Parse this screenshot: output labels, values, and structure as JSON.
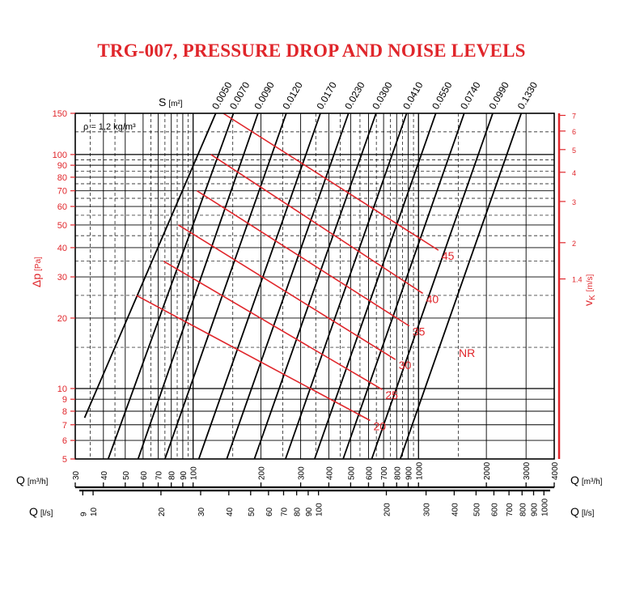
{
  "title": "TRG-007, PRESSURE DROP AND NOISE LEVELS",
  "colors": {
    "accent": "#e0262b",
    "lines": "#000000",
    "grid": "#000000"
  },
  "chart_data": {
    "type": "line",
    "title": "TRG-007, PRESSURE DROP AND NOISE LEVELS",
    "x_scale": "log",
    "y_scale": "log",
    "xlim": [
      30,
      4000
    ],
    "ylim": [
      5,
      150
    ],
    "grid": true,
    "annotation": "ρ = 1,2 kg/m³",
    "y_axis": {
      "label_main": "Δp",
      "label_unit": "[Pa]",
      "ticks": [
        5,
        6,
        7,
        8,
        9,
        10,
        20,
        30,
        40,
        50,
        60,
        70,
        80,
        90,
        100,
        150
      ]
    },
    "right_axis": {
      "label_main": "v",
      "label_sub": "K",
      "label_unit": "[m/s]",
      "ticks": [
        "1.4",
        "2",
        "3",
        "4",
        "5",
        "6",
        "7"
      ]
    },
    "x_axis_m3h": {
      "label_main": "Q",
      "label_unit": "[m³/h]",
      "ticks": [
        "30",
        "40",
        "50",
        "60",
        "70",
        "80",
        "90",
        "100",
        "200",
        "300",
        "400",
        "500",
        "600",
        "700",
        "800",
        "900",
        "1000",
        "2000",
        "3000",
        "4000"
      ]
    },
    "x_axis_ls": {
      "label_main": "Q",
      "label_unit": "[l/s]",
      "ticks": [
        "9",
        "10",
        "20",
        "30",
        "40",
        "50",
        "60",
        "70",
        "80",
        "90",
        "100",
        "200",
        "300",
        "400",
        "500",
        "600",
        "700",
        "800",
        "900",
        "1000"
      ]
    },
    "s_axis": {
      "label_main": "S",
      "label_unit": "[m²]"
    },
    "series": [
      {
        "name": "0.0050",
        "x": [
          33,
          126
        ],
        "y": [
          7.5,
          150
        ]
      },
      {
        "name": "0.0070",
        "x": [
          42,
          151
        ],
        "y": [
          5,
          150
        ]
      },
      {
        "name": "0.0090",
        "x": [
          57,
          194
        ],
        "y": [
          5,
          150
        ]
      },
      {
        "name": "0.0120",
        "x": [
          75,
          259
        ],
        "y": [
          5,
          150
        ]
      },
      {
        "name": "0.0170",
        "x": [
          106,
          367
        ],
        "y": [
          5,
          150
        ]
      },
      {
        "name": "0.0230",
        "x": [
          141,
          489
        ],
        "y": [
          5,
          150
        ]
      },
      {
        "name": "0.0300",
        "x": [
          187,
          648
        ],
        "y": [
          5,
          150
        ]
      },
      {
        "name": "0.0410",
        "x": [
          257,
          886
        ],
        "y": [
          5,
          150
        ]
      },
      {
        "name": "0.0550",
        "x": [
          346,
          1193
        ],
        "y": [
          5,
          150
        ]
      },
      {
        "name": "0.0740",
        "x": [
          463,
          1594
        ],
        "y": [
          5,
          150
        ]
      },
      {
        "name": "0.0990",
        "x": [
          620,
          2134
        ],
        "y": [
          5,
          150
        ]
      },
      {
        "name": "0.1330",
        "x": [
          830,
          2856
        ],
        "y": [
          5,
          150
        ]
      }
    ],
    "nr_label": "NR",
    "nr_series": [
      {
        "name": "20",
        "x": [
          56,
          610
        ],
        "y": [
          25,
          7.3
        ]
      },
      {
        "name": "25",
        "x": [
          74,
          690
        ],
        "y": [
          35,
          9.9
        ]
      },
      {
        "name": "30",
        "x": [
          86,
          790
        ],
        "y": [
          50,
          13.3
        ]
      },
      {
        "name": "35",
        "x": [
          104,
          910
        ],
        "y": [
          70,
          18.5
        ]
      },
      {
        "name": "40",
        "x": [
          120,
          1045
        ],
        "y": [
          100,
          25.5
        ]
      },
      {
        "name": "45",
        "x": [
          136,
          1225
        ],
        "y": [
          150,
          39
        ]
      }
    ]
  }
}
